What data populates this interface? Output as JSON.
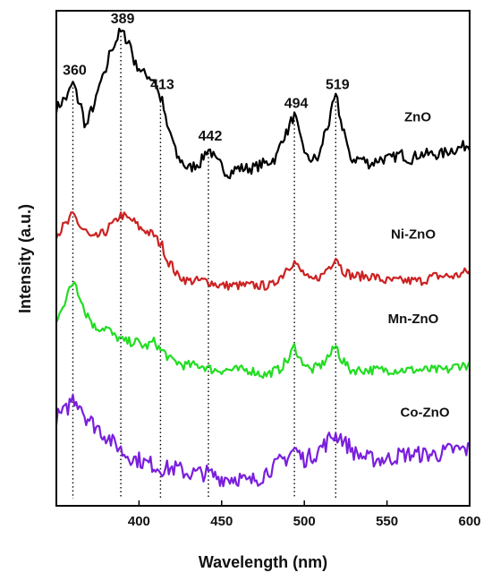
{
  "chart_data": {
    "type": "line",
    "xlabel": "Wavelength (nm)",
    "ylabel": "Intensity (a.u.)",
    "xlim": [
      350,
      600
    ],
    "x_ticks": [
      "400",
      "450",
      "500",
      "550",
      "600"
    ],
    "x_tick_values": [
      400,
      450,
      500,
      550,
      600
    ],
    "y_ticks_shown": false,
    "grid": false,
    "stacked_offset_spectra": true,
    "peak_markers": [
      {
        "wavelength": 360,
        "label": "360"
      },
      {
        "wavelength": 389,
        "label": "389"
      },
      {
        "wavelength": 413,
        "label": "413"
      },
      {
        "wavelength": 442,
        "label": "442"
      },
      {
        "wavelength": 494,
        "label": "494"
      },
      {
        "wavelength": 519,
        "label": "519"
      }
    ],
    "series": [
      {
        "name": "ZnO",
        "color": "#000000",
        "base": 0.7,
        "noise": 0.012,
        "points": [
          [
            350,
            0.84
          ],
          [
            356,
            0.86
          ],
          [
            360,
            0.89
          ],
          [
            364,
            0.85
          ],
          [
            368,
            0.8
          ],
          [
            372,
            0.84
          ],
          [
            378,
            0.9
          ],
          [
            384,
            0.97
          ],
          [
            389,
            1.0
          ],
          [
            394,
            0.98
          ],
          [
            398,
            0.93
          ],
          [
            404,
            0.91
          ],
          [
            409,
            0.9
          ],
          [
            413,
            0.86
          ],
          [
            418,
            0.79
          ],
          [
            424,
            0.73
          ],
          [
            430,
            0.71
          ],
          [
            436,
            0.72
          ],
          [
            442,
            0.75
          ],
          [
            448,
            0.72
          ],
          [
            454,
            0.7
          ],
          [
            460,
            0.71
          ],
          [
            468,
            0.71
          ],
          [
            476,
            0.72
          ],
          [
            482,
            0.73
          ],
          [
            488,
            0.78
          ],
          [
            494,
            0.82
          ],
          [
            498,
            0.77
          ],
          [
            502,
            0.73
          ],
          [
            508,
            0.73
          ],
          [
            514,
            0.8
          ],
          [
            519,
            0.86
          ],
          [
            523,
            0.8
          ],
          [
            528,
            0.73
          ],
          [
            534,
            0.73
          ],
          [
            540,
            0.72
          ],
          [
            546,
            0.73
          ],
          [
            552,
            0.73
          ],
          [
            558,
            0.74
          ],
          [
            564,
            0.73
          ],
          [
            570,
            0.74
          ],
          [
            576,
            0.74
          ],
          [
            582,
            0.74
          ],
          [
            590,
            0.75
          ],
          [
            600,
            0.76
          ]
        ]
      },
      {
        "name": "Ni-ZnO",
        "color": "#cc2222",
        "base": 0.45,
        "noise": 0.01,
        "points": [
          [
            350,
            0.57
          ],
          [
            356,
            0.59
          ],
          [
            360,
            0.61
          ],
          [
            366,
            0.58
          ],
          [
            372,
            0.56
          ],
          [
            378,
            0.57
          ],
          [
            384,
            0.59
          ],
          [
            389,
            0.61
          ],
          [
            395,
            0.6
          ],
          [
            402,
            0.58
          ],
          [
            408,
            0.57
          ],
          [
            413,
            0.55
          ],
          [
            418,
            0.51
          ],
          [
            424,
            0.48
          ],
          [
            430,
            0.47
          ],
          [
            440,
            0.47
          ],
          [
            450,
            0.46
          ],
          [
            460,
            0.46
          ],
          [
            470,
            0.46
          ],
          [
            480,
            0.46
          ],
          [
            486,
            0.48
          ],
          [
            490,
            0.5
          ],
          [
            494,
            0.51
          ],
          [
            498,
            0.49
          ],
          [
            504,
            0.47
          ],
          [
            510,
            0.48
          ],
          [
            515,
            0.5
          ],
          [
            519,
            0.52
          ],
          [
            524,
            0.49
          ],
          [
            530,
            0.48
          ],
          [
            540,
            0.48
          ],
          [
            550,
            0.47
          ],
          [
            560,
            0.47
          ],
          [
            570,
            0.47
          ],
          [
            580,
            0.48
          ],
          [
            590,
            0.48
          ],
          [
            600,
            0.49
          ]
        ]
      },
      {
        "name": "Mn-ZnO",
        "color": "#22dd22",
        "base": 0.27,
        "noise": 0.01,
        "points": [
          [
            350,
            0.38
          ],
          [
            354,
            0.42
          ],
          [
            358,
            0.45
          ],
          [
            361,
            0.47
          ],
          [
            364,
            0.44
          ],
          [
            368,
            0.4
          ],
          [
            374,
            0.37
          ],
          [
            380,
            0.37
          ],
          [
            386,
            0.35
          ],
          [
            392,
            0.34
          ],
          [
            398,
            0.34
          ],
          [
            404,
            0.33
          ],
          [
            409,
            0.34
          ],
          [
            414,
            0.32
          ],
          [
            420,
            0.3
          ],
          [
            428,
            0.29
          ],
          [
            436,
            0.29
          ],
          [
            446,
            0.28
          ],
          [
            456,
            0.28
          ],
          [
            466,
            0.28
          ],
          [
            476,
            0.27
          ],
          [
            484,
            0.28
          ],
          [
            490,
            0.3
          ],
          [
            494,
            0.33
          ],
          [
            498,
            0.3
          ],
          [
            504,
            0.28
          ],
          [
            510,
            0.29
          ],
          [
            515,
            0.31
          ],
          [
            519,
            0.33
          ],
          [
            523,
            0.3
          ],
          [
            528,
            0.28
          ],
          [
            536,
            0.28
          ],
          [
            546,
            0.28
          ],
          [
            556,
            0.28
          ],
          [
            566,
            0.28
          ],
          [
            576,
            0.28
          ],
          [
            586,
            0.28
          ],
          [
            594,
            0.29
          ],
          [
            600,
            0.29
          ]
        ]
      },
      {
        "name": "Co-ZnO",
        "color": "#7a1fdc",
        "base": 0.07,
        "noise": 0.018,
        "points": [
          [
            350,
            0.18
          ],
          [
            355,
            0.19
          ],
          [
            360,
            0.22
          ],
          [
            364,
            0.21
          ],
          [
            368,
            0.18
          ],
          [
            374,
            0.16
          ],
          [
            380,
            0.14
          ],
          [
            386,
            0.12
          ],
          [
            392,
            0.1
          ],
          [
            398,
            0.09
          ],
          [
            406,
            0.08
          ],
          [
            414,
            0.07
          ],
          [
            422,
            0.07
          ],
          [
            430,
            0.06
          ],
          [
            440,
            0.06
          ],
          [
            450,
            0.05
          ],
          [
            460,
            0.05
          ],
          [
            466,
            0.04
          ],
          [
            472,
            0.05
          ],
          [
            480,
            0.07
          ],
          [
            488,
            0.09
          ],
          [
            494,
            0.11
          ],
          [
            500,
            0.09
          ],
          [
            506,
            0.1
          ],
          [
            512,
            0.12
          ],
          [
            517,
            0.14
          ],
          [
            521,
            0.14
          ],
          [
            526,
            0.12
          ],
          [
            532,
            0.1
          ],
          [
            540,
            0.09
          ],
          [
            550,
            0.09
          ],
          [
            560,
            0.1
          ],
          [
            570,
            0.1
          ],
          [
            580,
            0.1
          ],
          [
            590,
            0.11
          ],
          [
            600,
            0.11
          ]
        ]
      }
    ]
  }
}
